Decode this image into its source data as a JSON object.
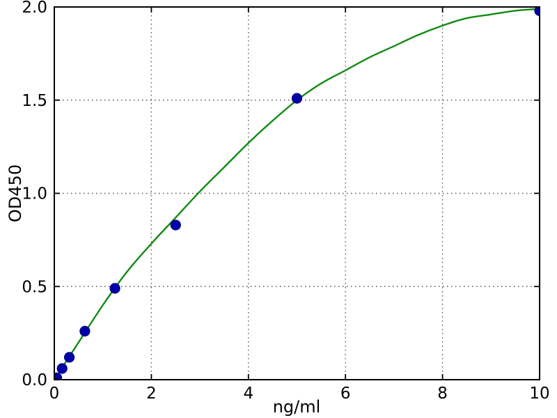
{
  "figure": {
    "background": "#ffffff"
  },
  "chart_data": {
    "type": "scatter",
    "title": "",
    "xlabel": "ng/ml",
    "ylabel": "OD450",
    "xlim": [
      0,
      10
    ],
    "ylim": [
      0,
      2.0
    ],
    "xticks": [
      0,
      2,
      4,
      6,
      8,
      10
    ],
    "xtick_labels": [
      "0",
      "2",
      "4",
      "6",
      "8",
      "10"
    ],
    "yticks": [
      0,
      0.5,
      1.0,
      1.5,
      2.0
    ],
    "ytick_labels": [
      "0.0",
      "0.5",
      "1.0",
      "1.5",
      "2.0"
    ],
    "grid": true,
    "grid_linestyle": "dotted",
    "legend": "none",
    "series": [
      {
        "name": "standard-points",
        "type": "scatter",
        "marker": "circle",
        "color": "#0000a8",
        "edge_color": "#000080",
        "points": [
          [
            0.05,
            0.01
          ],
          [
            0.16,
            0.06
          ],
          [
            0.31,
            0.12
          ],
          [
            0.63,
            0.26
          ],
          [
            1.25,
            0.49
          ],
          [
            2.5,
            0.83
          ],
          [
            5.0,
            1.51
          ],
          [
            10.0,
            1.98
          ]
        ]
      },
      {
        "name": "fit-curve",
        "type": "line",
        "color": "#128a12",
        "points": [
          [
            0.0,
            0.0
          ],
          [
            0.5,
            0.2
          ],
          [
            1.0,
            0.4
          ],
          [
            1.5,
            0.58
          ],
          [
            2.0,
            0.73
          ],
          [
            2.5,
            0.87
          ],
          [
            3.0,
            1.01
          ],
          [
            3.5,
            1.14
          ],
          [
            4.0,
            1.27
          ],
          [
            4.5,
            1.39
          ],
          [
            5.0,
            1.5
          ],
          [
            5.5,
            1.59
          ],
          [
            6.0,
            1.66
          ],
          [
            6.5,
            1.73
          ],
          [
            7.0,
            1.79
          ],
          [
            7.5,
            1.85
          ],
          [
            8.0,
            1.9
          ],
          [
            8.5,
            1.94
          ],
          [
            9.0,
            1.96
          ],
          [
            9.5,
            1.98
          ],
          [
            10.0,
            1.99
          ]
        ]
      }
    ],
    "colors": {
      "axis": "#000000",
      "grid": "#555555",
      "background": "#ffffff"
    }
  }
}
